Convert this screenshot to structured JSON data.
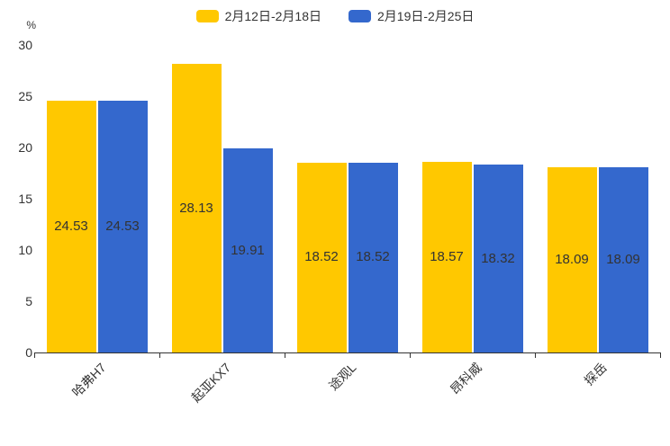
{
  "chart_data": {
    "type": "bar",
    "title": "",
    "xlabel": "",
    "ylabel": "%",
    "categories": [
      "哈弗H7",
      "起亚KX7",
      "途观L",
      "昂科威",
      "探岳"
    ],
    "series": [
      {
        "name": "2月12日-2月18日",
        "color": "#FFC800",
        "values": [
          24.53,
          28.13,
          18.52,
          18.57,
          18.09
        ]
      },
      {
        "name": "2月19日-2月25日",
        "color": "#3468CD",
        "values": [
          24.53,
          19.91,
          18.52,
          18.32,
          18.09
        ]
      }
    ],
    "ylim": [
      0,
      30
    ],
    "yticks": [
      0,
      5,
      10,
      15,
      20,
      25,
      30
    ],
    "grid": false,
    "legend_position": "top",
    "value_label_position": "inside-center"
  },
  "colors": {
    "background": "#ffffff",
    "text": "#333333",
    "axis": "#333333",
    "series_yellow": "#FFC800",
    "series_blue": "#3468CD"
  }
}
